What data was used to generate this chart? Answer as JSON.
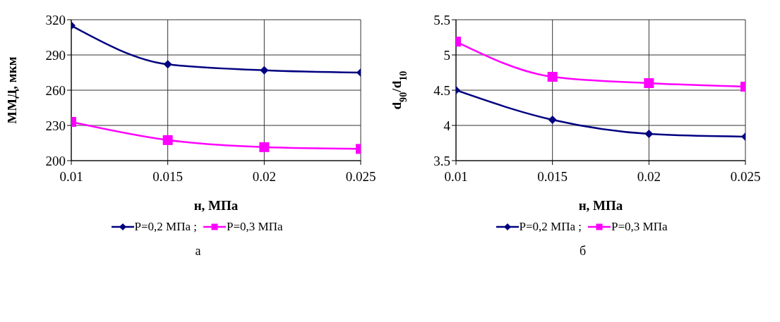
{
  "chart_data": [
    {
      "type": "line",
      "xlabel": "н, МПа",
      "ylabel": "ММД, мкм",
      "x": [
        0.01,
        0.015,
        0.02,
        0.025
      ],
      "xlim": [
        0.01,
        0.025
      ],
      "xticks": [
        0.01,
        0.015,
        0.02,
        0.025
      ],
      "ylim": [
        200,
        320
      ],
      "yticks": [
        200,
        230,
        260,
        290,
        320
      ],
      "grid": true,
      "legend": "bottom",
      "line_style": "solid",
      "annotations": [
        "а"
      ],
      "series": [
        {
          "name": "P=0,2 МПа ;",
          "color": "#000080",
          "marker": "diamond",
          "values": [
            315,
            282,
            277,
            275
          ]
        },
        {
          "name": "P=0,3 МПа",
          "color": "#ff00ff",
          "marker": "square",
          "values": [
            233,
            217.5,
            211.5,
            210
          ]
        }
      ]
    },
    {
      "type": "line",
      "xlabel": "н, МПа",
      "ylabel": "d$_{90}$/d$_{10}$",
      "x": [
        0.01,
        0.015,
        0.02,
        0.025
      ],
      "xlim": [
        0.01,
        0.025
      ],
      "xticks": [
        0.01,
        0.015,
        0.02,
        0.025
      ],
      "ylim": [
        3.5,
        5.5
      ],
      "yticks": [
        3.5,
        4,
        4.5,
        5,
        5.5
      ],
      "grid": true,
      "legend": "bottom",
      "line_style": "solid",
      "annotations": [
        "б"
      ],
      "series": [
        {
          "name": "P=0,2 МПа ;",
          "color": "#000080",
          "marker": "diamond",
          "values": [
            4.5,
            4.08,
            3.88,
            3.84
          ]
        },
        {
          "name": "P=0,3 МПа",
          "color": "#ff00ff",
          "marker": "square",
          "values": [
            5.19,
            4.69,
            4.6,
            4.55
          ]
        }
      ]
    }
  ]
}
